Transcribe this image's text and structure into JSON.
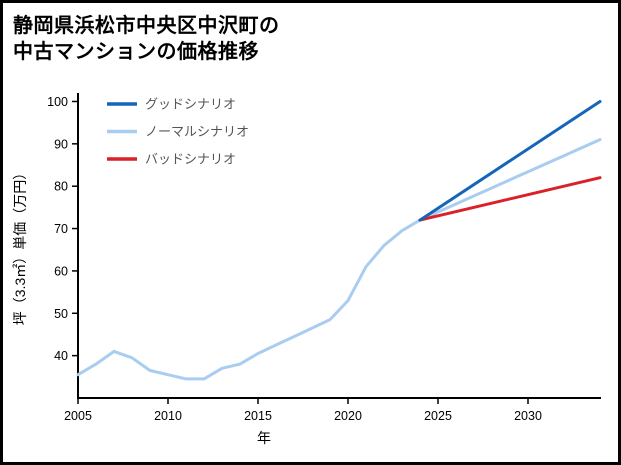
{
  "title": {
    "line1": "静岡県浜松市中央区中沢町の",
    "line2": "中古マンションの価格推移"
  },
  "chart_data": {
    "type": "line",
    "title": "静岡県浜松市中央区中沢町の中古マンションの価格推移",
    "xlabel": "年",
    "ylabel": "坪（3.3㎡）単価（万円）",
    "xlim": [
      2005,
      2034
    ],
    "ylim": [
      30,
      102
    ],
    "x_ticks": [
      2005,
      2010,
      2015,
      2020,
      2025,
      2030
    ],
    "y_ticks": [
      40,
      50,
      60,
      70,
      80,
      90,
      100
    ],
    "grid": false,
    "legend_position": "top-left",
    "axis_color": "#000000",
    "legend_text_color": "#555555",
    "series": [
      {
        "name": "グッドシナリオ",
        "key": "good-scenario",
        "color": "#1565b8",
        "x": [
          2024,
          2034
        ],
        "values": [
          72,
          100
        ]
      },
      {
        "name": "ノーマルシナリオ",
        "key": "normal-scenario",
        "color": "#a9cdf0",
        "x": [
          2005,
          2006,
          2007,
          2008,
          2009,
          2010,
          2011,
          2012,
          2013,
          2014,
          2015,
          2016,
          2017,
          2018,
          2019,
          2020,
          2021,
          2022,
          2023,
          2024,
          2025,
          2026,
          2027,
          2028,
          2029,
          2030,
          2031,
          2032,
          2033,
          2034
        ],
        "values": [
          35.5,
          38,
          41,
          39.5,
          36.5,
          35.5,
          34.5,
          34.5,
          37,
          38,
          40.5,
          42.5,
          44.5,
          46.5,
          48.5,
          53,
          61,
          66,
          69.5,
          72,
          73.9,
          75.8,
          77.7,
          79.6,
          81.5,
          83.4,
          85.3,
          87.2,
          89.1,
          91
        ]
      },
      {
        "name": "バッドシナリオ",
        "key": "bad-scenario",
        "color": "#da2128",
        "x": [
          2024,
          2034
        ],
        "values": [
          72,
          82
        ]
      }
    ]
  }
}
